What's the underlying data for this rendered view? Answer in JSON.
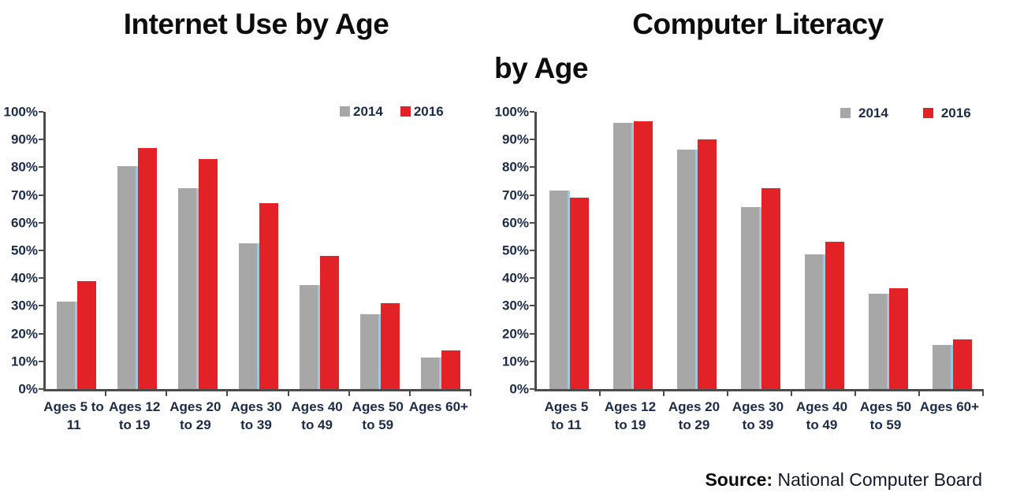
{
  "page": {
    "background": "#ffffff"
  },
  "colors": {
    "series_2014": "#a7a7a7",
    "series_2016": "#e32227",
    "gray_bar_edge_highlight": "#9fc7dd",
    "axis": "#4c4c4c",
    "axis_text": "#1c2b4a",
    "title_text": "#0d0d0d"
  },
  "source": {
    "label": "Source:",
    "text": " National Computer Board"
  },
  "chart_data": [
    {
      "type": "bar",
      "title": "Internet Use by Age",
      "title_lines": [
        "Internet Use by Age"
      ],
      "categories": [
        "Ages 5 to 11",
        "Ages 12 to 19",
        "Ages 20 to 29",
        "Ages 30 to 39",
        "Ages 40 to 49",
        "Ages 50 to 59",
        "Ages 60+"
      ],
      "category_label_lines": [
        [
          "Ages 5 to",
          "11"
        ],
        [
          "Ages 12",
          "to 19"
        ],
        [
          "Ages 20",
          "to 29"
        ],
        [
          "Ages 30",
          "to 39"
        ],
        [
          "Ages 40",
          "to 49"
        ],
        [
          "Ages 50",
          "to 59"
        ],
        [
          "Ages 60+"
        ]
      ],
      "series": [
        {
          "name": "2014",
          "color": "#a7a7a7",
          "values": [
            31.5,
            80.5,
            72.5,
            52.5,
            37.5,
            27,
            11.5
          ]
        },
        {
          "name": "2016",
          "color": "#e32227",
          "values": [
            39,
            87,
            83,
            67,
            48,
            31,
            14
          ]
        }
      ],
      "ylim": [
        0,
        100
      ],
      "yticks": [
        "0%",
        "10%",
        "20%",
        "30%",
        "40%",
        "50%",
        "60%",
        "70%",
        "80%",
        "90%",
        "100%"
      ],
      "grid": false,
      "legend_position": "top-right"
    },
    {
      "type": "bar",
      "title": "Computer Literacy by Age",
      "title_lines": [
        "Computer Literacy",
        "by Age"
      ],
      "categories": [
        "Ages 5 to 11",
        "Ages 12 to 19",
        "Ages 20 to 29",
        "Ages 30 to 39",
        "Ages 40 to 49",
        "Ages 50 to 59",
        "Ages 60+"
      ],
      "category_label_lines": [
        [
          "Ages 5",
          "to 11"
        ],
        [
          "Ages 12",
          "to 19"
        ],
        [
          "Ages 20",
          "to 29"
        ],
        [
          "Ages 30",
          "to 39"
        ],
        [
          "Ages 40",
          "to 49"
        ],
        [
          "Ages 50",
          "to 59"
        ],
        [
          "Ages 60+"
        ]
      ],
      "series": [
        {
          "name": "2014",
          "color": "#a7a7a7",
          "values": [
            71.5,
            96,
            86.5,
            65.5,
            48.5,
            34.5,
            16
          ]
        },
        {
          "name": "2016",
          "color": "#e32227",
          "values": [
            69,
            96.5,
            90,
            72.5,
            53,
            36.5,
            18
          ]
        }
      ],
      "ylim": [
        0,
        100
      ],
      "yticks": [
        "0%",
        "10%",
        "20%",
        "30%",
        "40%",
        "50%",
        "60%",
        "70%",
        "80%",
        "90%",
        "100%"
      ],
      "grid": false,
      "legend_position": "top-right"
    }
  ]
}
